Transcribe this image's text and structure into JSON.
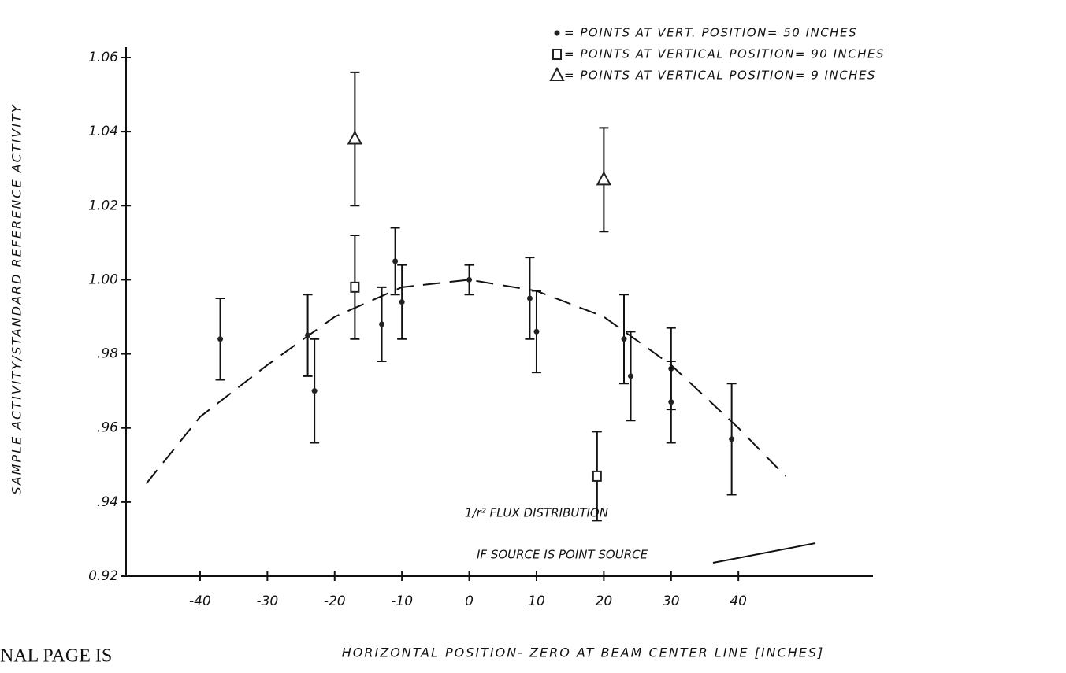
{
  "chart_data": {
    "type": "scatter",
    "xlabel": "HORIZONTAL POSITION- ZERO AT BEAM CENTER LINE [INCHES]",
    "ylabel": "SAMPLE ACTIVITY/STANDARD REFERENCE ACTIVITY",
    "xlim": [
      -51,
      60
    ],
    "ylim": [
      0.92,
      1.06
    ],
    "xticks": [
      -40,
      -30,
      -20,
      -10,
      0,
      10,
      20,
      30,
      40
    ],
    "yticks": [
      0.92,
      {
        "value": 0.94,
        "label": ".94"
      },
      {
        "value": 0.96,
        "label": ".96"
      },
      {
        "value": 0.98,
        "label": ".98"
      },
      {
        "value": 1.0,
        "label": "1.00"
      },
      1.02,
      1.04,
      1.06
    ],
    "series": [
      {
        "name": "= POINTS AT VERT. POSITION= 50 INCHES",
        "marker": "circle",
        "color": "#222",
        "x": [
          -37,
          -24,
          -23,
          -13,
          -11,
          -10,
          0,
          9,
          10,
          23,
          24,
          30,
          30,
          39
        ],
        "values": [
          0.984,
          0.985,
          0.97,
          0.988,
          1.005,
          0.994,
          1.0,
          0.995,
          0.986,
          0.984,
          0.974,
          0.976,
          0.967,
          0.957
        ],
        "errors": [
          0.011,
          0.011,
          0.014,
          0.01,
          0.009,
          0.01,
          0.004,
          0.011,
          0.011,
          0.012,
          0.012,
          0.011,
          0.011,
          0.015
        ]
      },
      {
        "name": "= POINTS AT VERTICAL POSITION= 90 INCHES",
        "marker": "square",
        "color": "#222",
        "x": [
          -17,
          19
        ],
        "values": [
          0.998,
          0.947
        ],
        "errors": [
          0.014,
          0.012
        ]
      },
      {
        "name": "= POINTS AT VERTICAL POSITION= 9 INCHES",
        "marker": "triangle",
        "color": "#222",
        "x": [
          -17,
          20
        ],
        "values": [
          1.038,
          1.027
        ],
        "errors": [
          0.018,
          0.014
        ]
      }
    ],
    "curve": {
      "x": [
        -48,
        -40,
        -30,
        -20,
        -10,
        0,
        10,
        20,
        30,
        40,
        47
      ],
      "values": [
        0.945,
        0.963,
        0.977,
        0.99,
        0.998,
        1.0,
        0.997,
        0.99,
        0.977,
        0.96,
        0.947
      ]
    },
    "annotations": [
      "1/r² FLUX DISTRIBUTION",
      "IF SOURCE IS POINT SOURCE"
    ],
    "page_note": "NAL PAGE IS"
  }
}
